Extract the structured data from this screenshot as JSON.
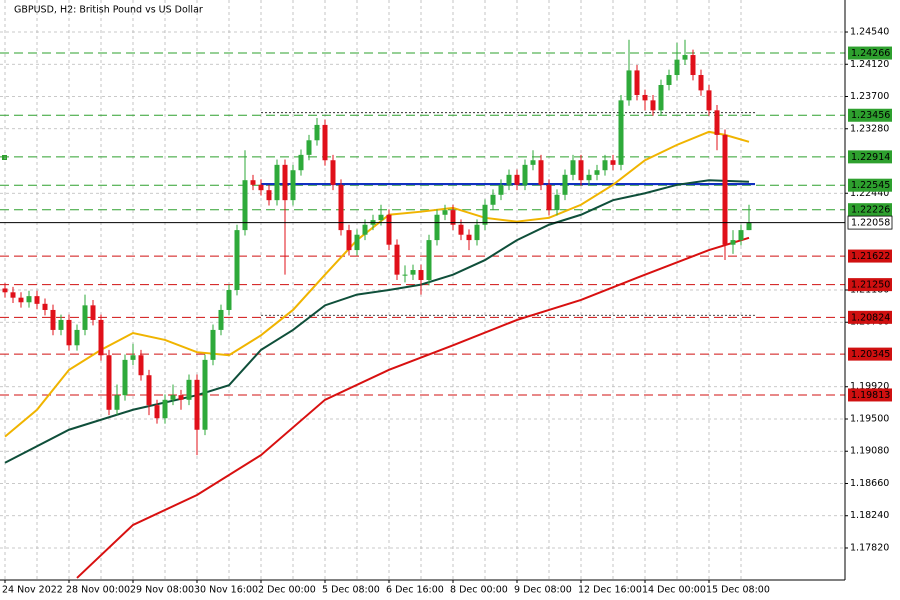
{
  "chart_data": {
    "type": "candlestick",
    "title": "GBPUSD, H2:  British Pound vs US Dollar",
    "categories": [
      "24 Nov 2022",
      null,
      null,
      null,
      null,
      null,
      null,
      null,
      "28 Nov 00:00",
      null,
      null,
      null,
      null,
      null,
      null,
      null,
      "29 Nov 08:00",
      null,
      null,
      null,
      null,
      null,
      null,
      null,
      "30 Nov 16:00",
      null,
      null,
      null,
      null,
      null,
      null,
      null,
      "2 Dec 00:00",
      null,
      null,
      null,
      null,
      null,
      null,
      null,
      "5 Dec 08:00",
      null,
      null,
      null,
      null,
      null,
      null,
      null,
      "6 Dec 16:00",
      null,
      null,
      null,
      null,
      null,
      null,
      null,
      "8 Dec 00:00",
      null,
      null,
      null,
      null,
      null,
      null,
      null,
      "9 Dec 08:00",
      null,
      null,
      null,
      null,
      null,
      null,
      null,
      "12 Dec 16:00",
      null,
      null,
      null,
      null,
      null,
      null,
      null,
      "14 Dec 00:00",
      null,
      null,
      null,
      null,
      null,
      null,
      null,
      "15 Dec 08:00",
      null,
      null,
      null,
      null,
      null
    ],
    "open": [
      1.212,
      1.2115,
      1.2108,
      1.2102,
      1.211,
      1.21,
      1.2092,
      1.2066,
      1.2079,
      1.2046,
      1.2066,
      1.2098,
      1.2079,
      1.2033,
      1.1962,
      1.1981,
      1.2027,
      1.2033,
      1.2007,
      1.1968,
      1.1951,
      1.1975,
      1.1981,
      1.1975,
      1.2001,
      1.1936,
      1.2027,
      1.2066,
      1.2092,
      1.2118,
      1.2196,
      1.2261,
      1.2255,
      1.2248,
      1.2235,
      1.2281,
      1.2235,
      1.2274,
      1.2294,
      1.2313,
      1.2333,
      1.2287,
      1.2255,
      1.2196,
      1.217,
      1.219,
      1.2203,
      1.2209,
      1.2216,
      1.2177,
      1.2138,
      1.2138,
      1.2144,
      1.2131,
      1.2183,
      1.2216,
      1.2222,
      1.2203,
      1.219,
      1.2183,
      1.2203,
      1.2229,
      1.2242,
      1.2255,
      1.2268,
      1.2255,
      1.2281,
      1.2287,
      1.2255,
      1.2222,
      1.2242,
      1.2268,
      1.2287,
      1.2261,
      1.2268,
      1.2274,
      1.2287,
      1.2281,
      1.2365,
      1.2404,
      1.2372,
      1.2365,
      1.2352,
      1.2385,
      1.2398,
      1.2418,
      1.2424,
      1.2398,
      1.2378,
      1.2352,
      1.232,
      1.2177,
      1.2183,
      1.2196
    ],
    "high": [
      1.2127,
      1.2122,
      1.2115,
      1.2117,
      1.2117,
      1.2107,
      1.2099,
      1.2086,
      1.2086,
      1.2073,
      1.2112,
      1.2105,
      1.2086,
      1.204,
      1.1995,
      1.2034,
      1.2048,
      1.204,
      1.2014,
      1.1975,
      1.1982,
      1.1995,
      1.1988,
      1.2008,
      1.2008,
      1.2034,
      1.2073,
      1.2099,
      1.2125,
      1.2203,
      1.23,
      1.2268,
      1.2262,
      1.2255,
      1.2288,
      1.2288,
      1.2281,
      1.2301,
      1.232,
      1.2342,
      1.234,
      1.2294,
      1.2262,
      1.2203,
      1.2197,
      1.221,
      1.2216,
      1.2229,
      1.2223,
      1.2184,
      1.215,
      1.2151,
      1.2151,
      1.219,
      1.2223,
      1.2229,
      1.2229,
      1.221,
      1.2197,
      1.221,
      1.2236,
      1.2249,
      1.2262,
      1.2275,
      1.2275,
      1.2288,
      1.23,
      1.2294,
      1.2262,
      1.2249,
      1.2275,
      1.2294,
      1.2294,
      1.2275,
      1.2281,
      1.2294,
      1.2294,
      1.2372,
      1.2444,
      1.2411,
      1.2379,
      1.2372,
      1.2392,
      1.2405,
      1.244,
      1.2444,
      1.2431,
      1.2405,
      1.2385,
      1.2359,
      1.2327,
      1.2196,
      1.2203,
      1.2229
    ],
    "low": [
      1.2108,
      1.2101,
      1.2095,
      1.2095,
      1.2093,
      1.2085,
      1.2059,
      1.2059,
      1.2039,
      1.2039,
      1.2059,
      1.2072,
      1.2026,
      1.1955,
      1.1955,
      1.1974,
      1.202,
      1.2,
      1.1955,
      1.1944,
      1.1944,
      1.1968,
      1.1962,
      1.1968,
      1.1903,
      1.1929,
      1.202,
      1.2059,
      1.2085,
      1.2111,
      1.2189,
      1.2248,
      1.2241,
      1.2228,
      1.2228,
      1.2138,
      1.2228,
      1.2267,
      1.2287,
      1.2306,
      1.228,
      1.2248,
      1.2189,
      1.2163,
      1.2163,
      1.2183,
      1.2196,
      1.2202,
      1.217,
      1.2131,
      1.2128,
      1.2131,
      1.2112,
      1.2124,
      1.2176,
      1.2209,
      1.2196,
      1.2183,
      1.217,
      1.2176,
      1.2196,
      1.2222,
      1.2235,
      1.2248,
      1.2248,
      1.2248,
      1.2274,
      1.2248,
      1.2215,
      1.2215,
      1.2235,
      1.2261,
      1.2254,
      1.2254,
      1.2261,
      1.2267,
      1.2274,
      1.2274,
      1.2358,
      1.2365,
      1.2352,
      1.2345,
      1.2345,
      1.2378,
      1.2391,
      1.2411,
      1.2391,
      1.2371,
      1.2345,
      1.23,
      1.2157,
      1.2165,
      1.2176,
      1.2196
    ],
    "close": [
      1.2115,
      1.2108,
      1.2102,
      1.211,
      1.21,
      1.2092,
      1.2066,
      1.2079,
      1.2046,
      1.2066,
      1.2098,
      1.2079,
      1.2033,
      1.1962,
      1.1981,
      1.2027,
      1.2033,
      1.2007,
      1.1968,
      1.1951,
      1.1975,
      1.1981,
      1.1975,
      1.2001,
      1.1936,
      1.2027,
      1.2066,
      1.2092,
      1.2118,
      1.2196,
      1.2261,
      1.2255,
      1.2248,
      1.2235,
      1.2281,
      1.2235,
      1.2274,
      1.2294,
      1.2313,
      1.2333,
      1.2287,
      1.2255,
      1.2196,
      1.217,
      1.219,
      1.2203,
      1.2209,
      1.2216,
      1.2177,
      1.2138,
      1.2138,
      1.2144,
      1.2131,
      1.2183,
      1.2216,
      1.2222,
      1.2203,
      1.219,
      1.2183,
      1.2203,
      1.2229,
      1.2242,
      1.2255,
      1.2268,
      1.2255,
      1.2281,
      1.2287,
      1.2255,
      1.2222,
      1.2242,
      1.2268,
      1.2287,
      1.2261,
      1.2268,
      1.2274,
      1.2287,
      1.2281,
      1.2365,
      1.2404,
      1.2372,
      1.2365,
      1.2352,
      1.2385,
      1.2398,
      1.2418,
      1.2424,
      1.2398,
      1.2378,
      1.2352,
      1.232,
      1.2177,
      1.2183,
      1.2196,
      1.2206
    ],
    "up_color": "#2eaa3a",
    "down_color": "#e0101a",
    "moving_averages": [
      {
        "color": "#f0b400",
        "x": [
          0,
          4,
          8,
          12,
          16,
          20,
          24,
          28,
          32,
          36,
          40,
          44,
          48,
          52,
          56,
          60,
          64,
          68,
          72,
          76,
          80,
          84,
          88,
          90,
          93
        ],
        "values": [
          1.1927,
          1.1962,
          1.2014,
          1.204,
          1.2062,
          1.2053,
          1.2037,
          1.2033,
          1.2059,
          1.2092,
          1.2138,
          1.2183,
          1.2216,
          1.222,
          1.2225,
          1.2212,
          1.2207,
          1.2212,
          1.2229,
          1.2255,
          1.2287,
          1.2307,
          1.2324,
          1.232,
          1.2311
        ]
      },
      {
        "color": "#0f4f3a",
        "x": [
          0,
          8,
          16,
          24,
          28,
          32,
          36,
          40,
          44,
          48,
          52,
          56,
          60,
          64,
          68,
          72,
          76,
          80,
          84,
          88,
          93
        ],
        "values": [
          1.1893,
          1.1936,
          1.1962,
          1.1981,
          1.1994,
          1.204,
          1.2066,
          1.2098,
          1.2112,
          1.2118,
          1.2125,
          1.2138,
          1.2157,
          1.2183,
          1.2203,
          1.2216,
          1.2235,
          1.2244,
          1.2255,
          1.2261,
          1.2259
        ]
      },
      {
        "color": "#d81010",
        "x": [
          9,
          16,
          24,
          32,
          40,
          48,
          56,
          64,
          72,
          80,
          88,
          93
        ],
        "values": [
          1.1743,
          1.1812,
          1.1851,
          1.1903,
          1.1975,
          1.2014,
          1.2046,
          1.2079,
          1.2105,
          1.2138,
          1.217,
          1.2186
        ]
      }
    ],
    "levels": [
      {
        "value": 1.24266,
        "color": "#2ea02e"
      },
      {
        "value": 1.23456,
        "color": "#2ea02e"
      },
      {
        "value": 1.22914,
        "color": "#2ea02e"
      },
      {
        "value": 1.22545,
        "color": "#2ea02e"
      },
      {
        "value": 1.22226,
        "color": "#2ea02e"
      },
      {
        "value": 1.21622,
        "color": "#d01010"
      },
      {
        "value": 1.2125,
        "label": "1.21250",
        "color": "#d01010"
      },
      {
        "value": 1.20824,
        "color": "#d01010"
      },
      {
        "value": 1.20345,
        "color": "#d01010"
      },
      {
        "value": 1.19813,
        "color": "#d01010"
      }
    ],
    "last_price": 1.22058,
    "trend_lines": [
      {
        "value": 1.2256,
        "from": 32,
        "color": "#1030c0",
        "style": "solid"
      },
      {
        "value": 1.2349,
        "from": 32,
        "color": "#333333",
        "style": "dotted"
      },
      {
        "value": 1.2085,
        "from": 32,
        "color": "#333333",
        "style": "dotted"
      }
    ],
    "ylim": [
      1.17403,
      1.24957
    ],
    "yticks": [
      {
        "value": 1.2454,
        "label": "1.24540"
      },
      {
        "value": 1.2412,
        "label": "1.24120"
      },
      {
        "value": 1.237,
        "label": "1.23700"
      },
      {
        "value": 1.2328,
        "label": "1.23280"
      },
      {
        "value": 1.2244,
        "label": "1.22440"
      },
      {
        "value": 1.2118,
        "label": "1.21180"
      },
      {
        "value": 1.2076,
        "label": "1.20760"
      },
      {
        "value": 1.1992,
        "label": "1.19920"
      },
      {
        "value": 1.195,
        "label": "1.19500"
      },
      {
        "value": 1.1908,
        "label": "1.19080"
      },
      {
        "value": 1.1866,
        "label": "1.18660"
      },
      {
        "value": 1.1824,
        "label": "1.18240"
      },
      {
        "value": 1.1782,
        "label": "1.17820"
      }
    ],
    "grid": true
  }
}
